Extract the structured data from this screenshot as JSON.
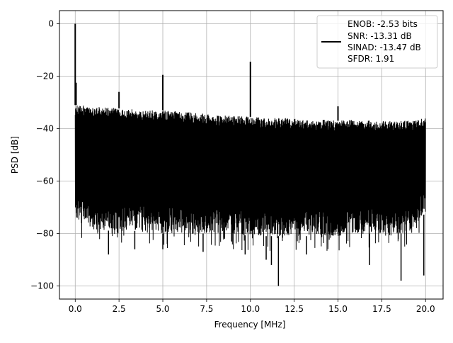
{
  "chart_data": {
    "type": "line",
    "title": "",
    "xlabel": "Frequency [MHz]",
    "ylabel": "PSD [dB]",
    "xlim": [
      -0.9,
      21.0
    ],
    "ylim": [
      -105,
      5
    ],
    "grid": true,
    "x_ticks": [
      0.0,
      2.5,
      5.0,
      7.5,
      10.0,
      12.5,
      15.0,
      17.5,
      20.0
    ],
    "x_tick_labels": [
      "0.0",
      "2.5",
      "5.0",
      "7.5",
      "10.0",
      "12.5",
      "15.0",
      "17.5",
      "20.0"
    ],
    "y_ticks": [
      0,
      -20,
      -40,
      -60,
      -80,
      -100
    ],
    "y_tick_labels": [
      "0",
      "−20",
      "−40",
      "−60",
      "−80",
      "−100"
    ],
    "legend": {
      "position": "top-right",
      "lines": [
        "ENOB: -2.53 bits",
        "SNR: -13.31 dB",
        "SINAD: -13.47 dB",
        "SFDR: 1.91"
      ]
    },
    "series": [
      {
        "color": "#000000",
        "noise_floor_top": [
          [
            0.0,
            -31
          ],
          [
            0.5,
            -31
          ],
          [
            1.0,
            -31.5
          ],
          [
            2.0,
            -32
          ],
          [
            3.0,
            -32.5
          ],
          [
            4.0,
            -33
          ],
          [
            5.0,
            -33
          ],
          [
            6.0,
            -33.5
          ],
          [
            7.0,
            -34
          ],
          [
            8.0,
            -35
          ],
          [
            9.0,
            -35
          ],
          [
            10.0,
            -35.5
          ],
          [
            11.0,
            -36
          ],
          [
            12.0,
            -36
          ],
          [
            13.0,
            -36.5
          ],
          [
            14.0,
            -36.5
          ],
          [
            15.0,
            -37
          ],
          [
            16.0,
            -36.5
          ],
          [
            17.0,
            -37
          ],
          [
            18.0,
            -37
          ],
          [
            19.0,
            -37
          ],
          [
            20.0,
            -36
          ]
        ],
        "noise_floor_bottom": [
          [
            0.0,
            -75
          ],
          [
            1.0,
            -78
          ],
          [
            2.0,
            -79
          ],
          [
            3.0,
            -79
          ],
          [
            4.0,
            -79
          ],
          [
            5.0,
            -80
          ],
          [
            6.0,
            -80
          ],
          [
            7.0,
            -80
          ],
          [
            8.0,
            -80
          ],
          [
            9.0,
            -80
          ],
          [
            10.0,
            -81
          ],
          [
            11.0,
            -81
          ],
          [
            12.0,
            -81
          ],
          [
            13.0,
            -81
          ],
          [
            14.0,
            -81
          ],
          [
            15.0,
            -81
          ],
          [
            16.0,
            -80
          ],
          [
            17.0,
            -80
          ],
          [
            18.0,
            -80
          ],
          [
            19.0,
            -80
          ],
          [
            20.0,
            -72
          ]
        ],
        "spikes": [
          {
            "x": 0.0,
            "y": 0
          },
          {
            "x": 0.05,
            "y": -22.5
          },
          {
            "x": 2.5,
            "y": -26
          },
          {
            "x": 5.0,
            "y": -19.5
          },
          {
            "x": 10.0,
            "y": -14.5
          },
          {
            "x": 15.0,
            "y": -31.5
          }
        ],
        "dips": [
          {
            "x": 1.9,
            "y": -88
          },
          {
            "x": 3.4,
            "y": -86
          },
          {
            "x": 5.0,
            "y": -86
          },
          {
            "x": 7.3,
            "y": -87
          },
          {
            "x": 9.7,
            "y": -88
          },
          {
            "x": 10.9,
            "y": -90
          },
          {
            "x": 11.2,
            "y": -92
          },
          {
            "x": 11.6,
            "y": -100
          },
          {
            "x": 13.2,
            "y": -88
          },
          {
            "x": 16.8,
            "y": -92
          },
          {
            "x": 18.6,
            "y": -98
          },
          {
            "x": 19.9,
            "y": -96
          }
        ]
      }
    ]
  }
}
